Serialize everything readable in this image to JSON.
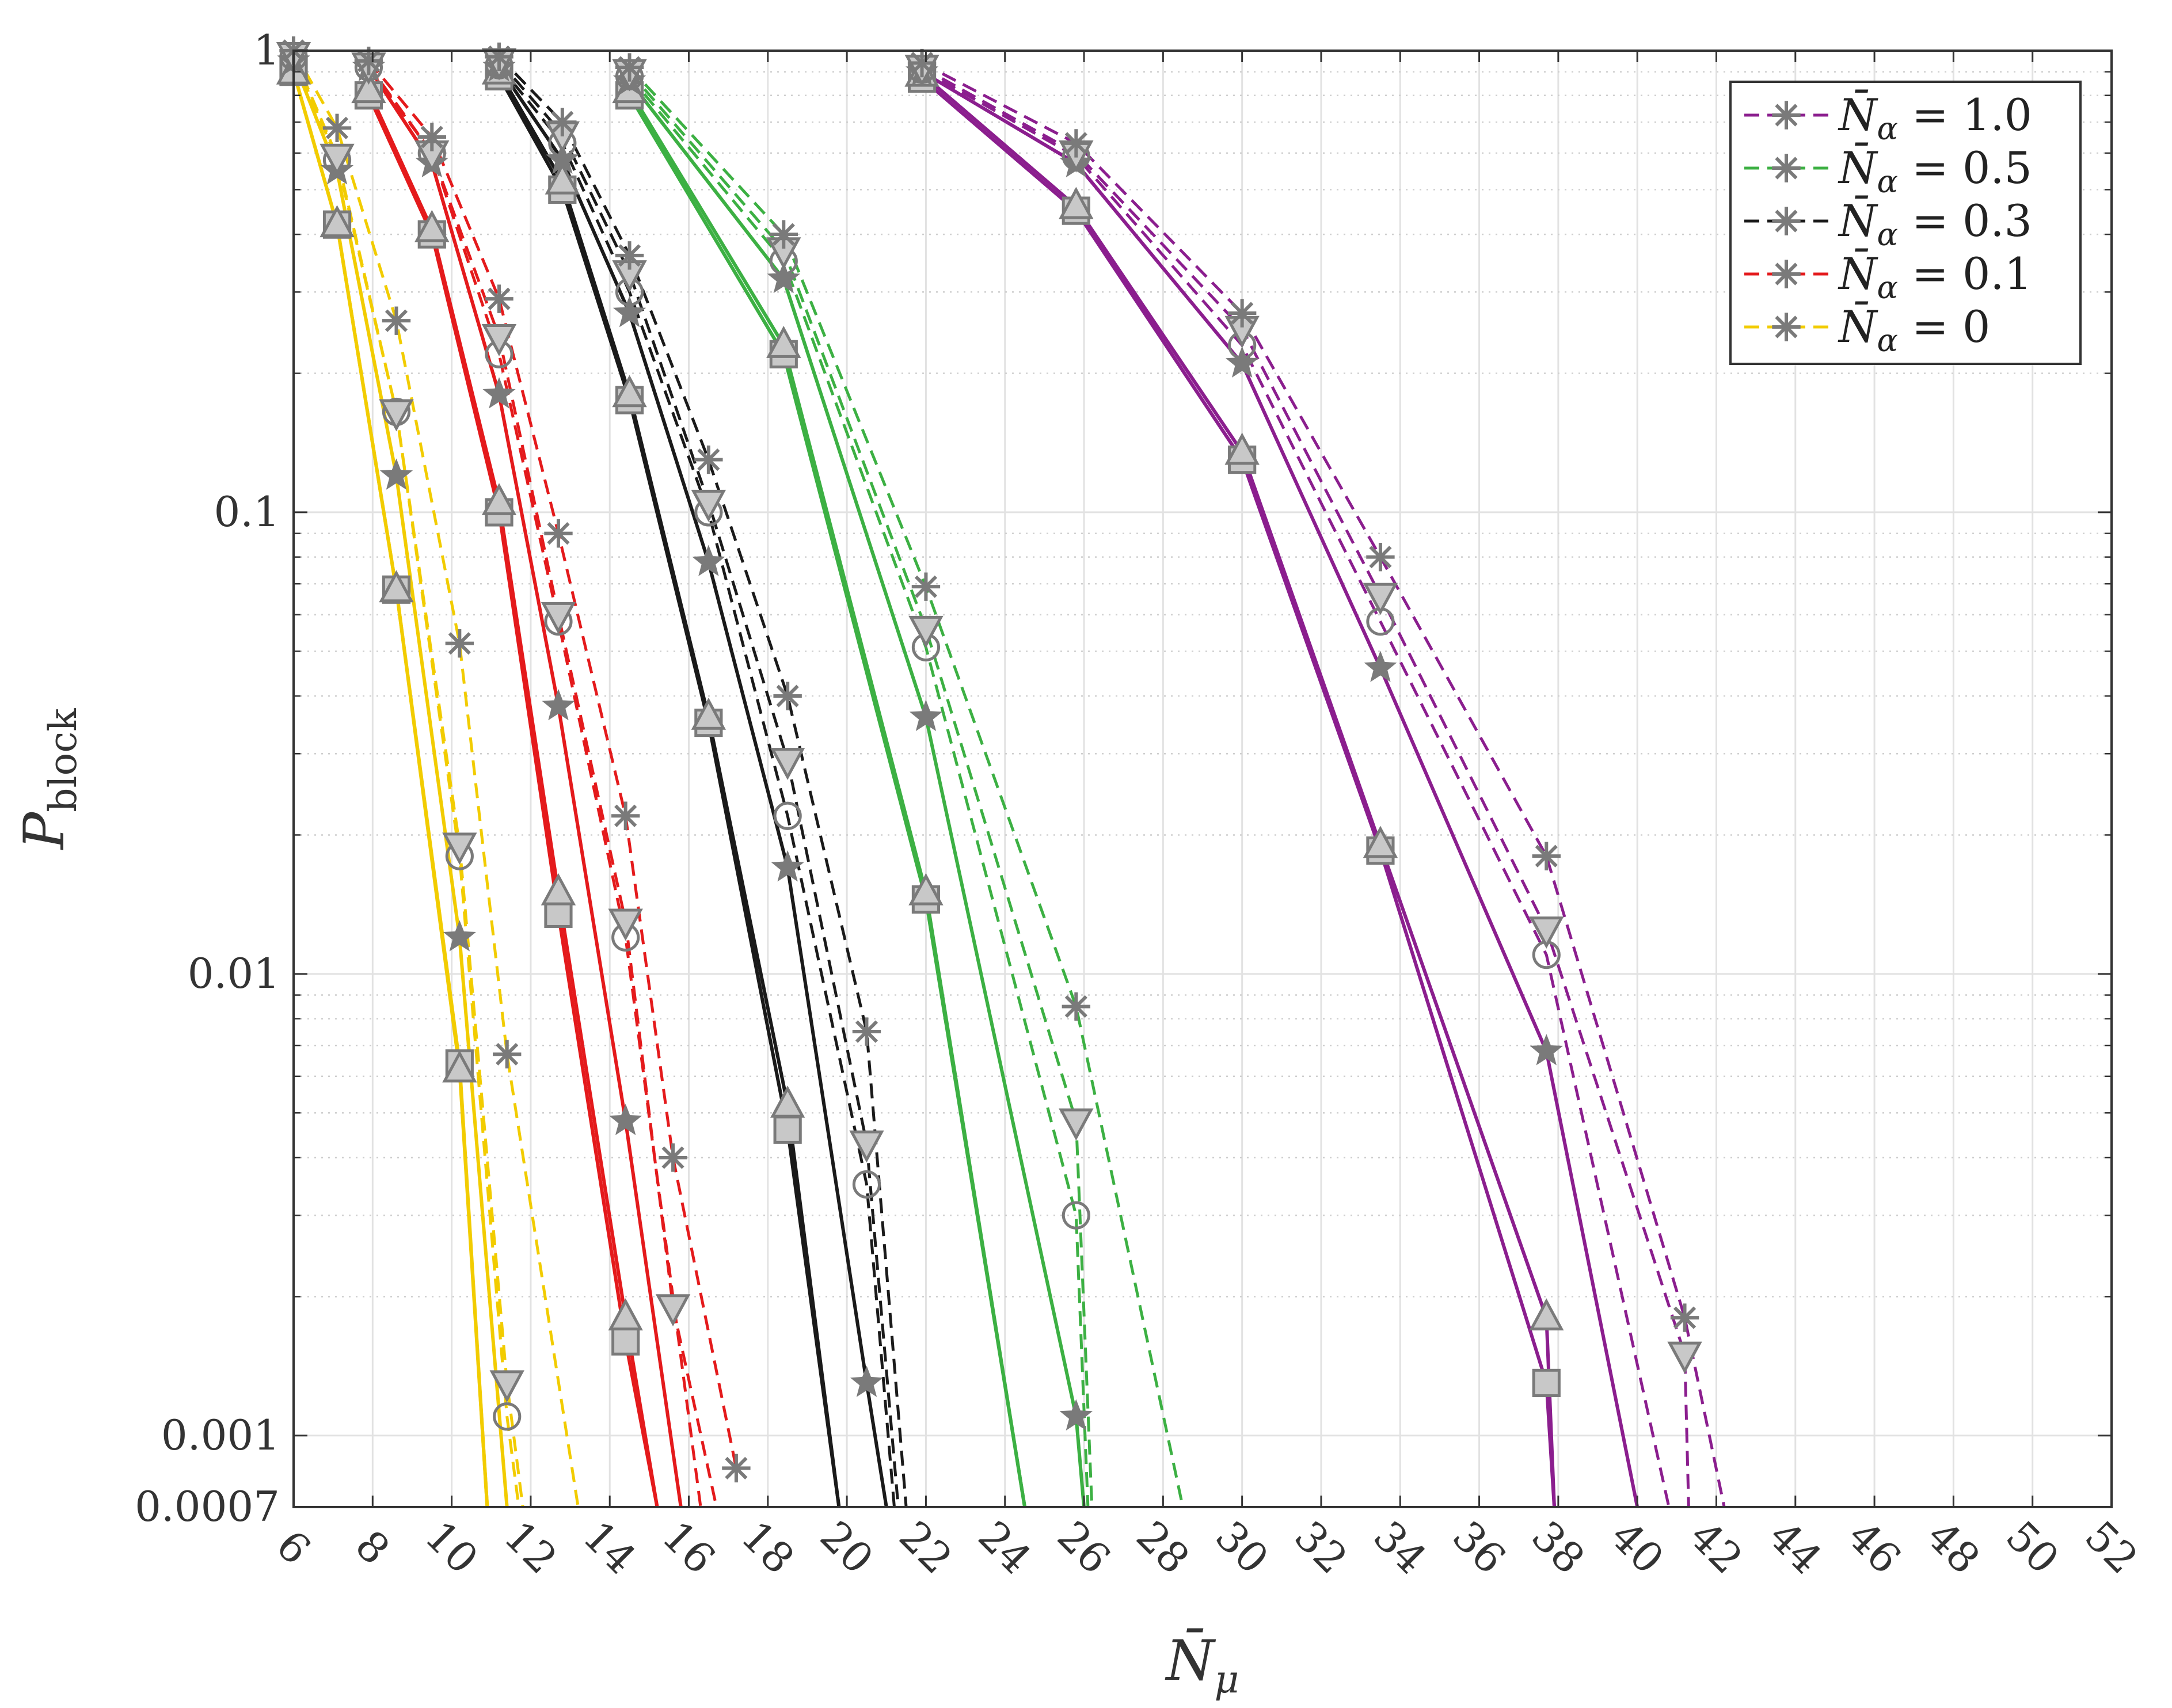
{
  "chart_data": {
    "type": "line",
    "xlabel": "N̄",
    "xlabel_sub": "μ",
    "ylabel": "P",
    "ylabel_sub": "block",
    "xlim": [
      6,
      52
    ],
    "ylim": [
      0.0007,
      1
    ],
    "yscale": "log",
    "grid": true,
    "legend_position": "top-right",
    "x_ticks": [
      6,
      8,
      10,
      12,
      14,
      16,
      18,
      20,
      22,
      24,
      26,
      28,
      30,
      32,
      34,
      36,
      38,
      40,
      42,
      44,
      46,
      48,
      50,
      52
    ],
    "x_tick_labels": [
      "6",
      "8",
      "10",
      "12",
      "14",
      "16",
      "18",
      "20",
      "22",
      "24",
      "26",
      "28",
      "30",
      "32",
      "34",
      "36",
      "38",
      "40",
      "42",
      "44",
      "46",
      "48",
      "50",
      "52"
    ],
    "y_ticks": [
      1,
      0.1,
      0.01,
      0.001,
      0.0007
    ],
    "y_tick_labels": [
      "1",
      "0.1",
      "0.01",
      "0.001",
      "0.0007"
    ],
    "legend": [
      {
        "prefix": "N̄",
        "sub": "α",
        "text": " = 1.0",
        "color": "#8B1E8E"
      },
      {
        "prefix": "N̄",
        "sub": "α",
        "text": " = 0.5",
        "color": "#3CB043"
      },
      {
        "prefix": "N̄",
        "sub": "α",
        "text": " = 0.3",
        "color": "#1A1A1A"
      },
      {
        "prefix": "N̄",
        "sub": "α",
        "text": " = 0.1",
        "color": "#E41A1C"
      },
      {
        "prefix": "N̄",
        "sub": "α",
        "text": " = 0",
        "color": "#F2CC00"
      }
    ],
    "groups": [
      {
        "alpha": "0",
        "color": "#F2CC00",
        "series": [
          {
            "marker": "square",
            "dash": false,
            "x": [
              6,
              7.1,
              8.6,
              10.2,
              10.9
            ],
            "y": [
              0.9,
              0.42,
              0.068,
              0.0064,
              0.0007
            ]
          },
          {
            "marker": "triangle-up",
            "dash": false,
            "x": [
              6,
              7.1,
              8.6,
              10.2,
              10.9
            ],
            "y": [
              0.9,
              0.42,
              0.068,
              0.0062,
              0.0007
            ]
          },
          {
            "marker": "star",
            "dash": false,
            "x": [
              6,
              7.1,
              8.6,
              10.2,
              11.4
            ],
            "y": [
              0.95,
              0.55,
              0.12,
              0.012,
              0.0007
            ]
          },
          {
            "marker": "circle",
            "dash": true,
            "x": [
              6,
              7.1,
              8.6,
              10.2,
              11.4,
              11.7
            ],
            "y": [
              0.97,
              0.58,
              0.165,
              0.018,
              0.0011,
              0.0007
            ]
          },
          {
            "marker": "triangle-down",
            "dash": true,
            "x": [
              6,
              7.1,
              8.6,
              10.2,
              11.4,
              11.8
            ],
            "y": [
              0.98,
              0.59,
              0.165,
              0.019,
              0.0013,
              0.0007
            ]
          },
          {
            "marker": "asterisk",
            "dash": true,
            "x": [
              6,
              7.1,
              8.6,
              10.2,
              11.4,
              13.2
            ],
            "y": [
              1.0,
              0.68,
              0.26,
              0.052,
              0.0067,
              0.0007
            ]
          }
        ]
      },
      {
        "alpha": "0.1",
        "color": "#E41A1C",
        "series": [
          {
            "marker": "square",
            "dash": false,
            "x": [
              7.9,
              9.5,
              11.2,
              12.7,
              14.4,
              15.2
            ],
            "y": [
              0.8,
              0.4,
              0.1,
              0.0135,
              0.0016,
              0.0007
            ]
          },
          {
            "marker": "triangle-up",
            "dash": false,
            "x": [
              7.9,
              9.5,
              11.2,
              12.7,
              14.4,
              15.2
            ],
            "y": [
              0.82,
              0.41,
              0.105,
              0.015,
              0.0018,
              0.0007
            ]
          },
          {
            "marker": "star",
            "dash": false,
            "x": [
              7.9,
              9.5,
              11.2,
              12.7,
              14.4,
              15.8
            ],
            "y": [
              0.92,
              0.57,
              0.18,
              0.038,
              0.0048,
              0.0007
            ]
          },
          {
            "marker": "circle",
            "dash": true,
            "x": [
              7.9,
              9.5,
              11.2,
              12.7,
              14.4,
              16.3
            ],
            "y": [
              0.92,
              0.6,
              0.22,
              0.058,
              0.012,
              0.0007
            ]
          },
          {
            "marker": "triangle-down",
            "dash": true,
            "x": [
              7.9,
              9.5,
              11.2,
              12.7,
              14.4,
              15.6,
              16.7
            ],
            "y": [
              0.93,
              0.6,
              0.24,
              0.06,
              0.013,
              0.0019,
              0.0007
            ]
          },
          {
            "marker": "asterisk",
            "dash": true,
            "x": [
              7.9,
              9.5,
              11.2,
              12.7,
              14.4,
              15.6,
              17.2
            ],
            "y": [
              0.95,
              0.65,
              0.29,
              0.09,
              0.022,
              0.004,
              0.00085
            ]
          }
        ]
      },
      {
        "alpha": "0.3",
        "color": "#1A1A1A",
        "series": [
          {
            "marker": "square",
            "dash": false,
            "x": [
              11.2,
              12.8,
              14.5,
              16.5,
              18.5,
              19.8
            ],
            "y": [
              0.88,
              0.5,
              0.175,
              0.035,
              0.0046,
              0.0007
            ]
          },
          {
            "marker": "triangle-up",
            "dash": false,
            "x": [
              11.2,
              12.8,
              14.5,
              16.5,
              18.5,
              19.8
            ],
            "y": [
              0.9,
              0.52,
              0.18,
              0.036,
              0.0052,
              0.0007
            ]
          },
          {
            "marker": "star",
            "dash": false,
            "x": [
              11.2,
              12.8,
              14.5,
              16.5,
              18.5,
              20.5,
              21.0
            ],
            "y": [
              0.92,
              0.58,
              0.27,
              0.078,
              0.017,
              0.0013,
              0.0007
            ]
          },
          {
            "marker": "circle",
            "dash": true,
            "x": [
              11.2,
              12.8,
              14.5,
              16.5,
              18.5,
              20.5,
              21.2
            ],
            "y": [
              0.93,
              0.63,
              0.3,
              0.1,
              0.022,
              0.0035,
              0.0007
            ]
          },
          {
            "marker": "triangle-down",
            "dash": true,
            "x": [
              11.2,
              12.8,
              14.5,
              16.5,
              18.5,
              20.5,
              21.3
            ],
            "y": [
              0.95,
              0.66,
              0.33,
              0.105,
              0.029,
              0.0043,
              0.0007
            ]
          },
          {
            "marker": "asterisk",
            "dash": true,
            "x": [
              11.2,
              12.8,
              14.5,
              16.5,
              18.5,
              20.5,
              21.5
            ],
            "y": [
              0.97,
              0.7,
              0.36,
              0.13,
              0.04,
              0.0075,
              0.0007
            ]
          }
        ]
      },
      {
        "alpha": "0.5",
        "color": "#3CB043",
        "series": [
          {
            "marker": "square",
            "dash": false,
            "x": [
              14.5,
              18.4,
              22.0,
              24.5
            ],
            "y": [
              0.8,
              0.22,
              0.0145,
              0.0007
            ]
          },
          {
            "marker": "triangle-up",
            "dash": false,
            "x": [
              14.5,
              18.4,
              22.0,
              24.5
            ],
            "y": [
              0.82,
              0.23,
              0.015,
              0.0007
            ]
          },
          {
            "marker": "star",
            "dash": false,
            "x": [
              14.5,
              18.4,
              22.0,
              25.8,
              26.0
            ],
            "y": [
              0.86,
              0.32,
              0.036,
              0.0011,
              0.0007
            ]
          },
          {
            "marker": "circle",
            "dash": true,
            "x": [
              14.5,
              18.4,
              22.0,
              25.8,
              26.1
            ],
            "y": [
              0.88,
              0.35,
              0.051,
              0.003,
              0.0007
            ]
          },
          {
            "marker": "triangle-down",
            "dash": true,
            "x": [
              14.5,
              18.4,
              22.0,
              25.8,
              26.2
            ],
            "y": [
              0.9,
              0.37,
              0.056,
              0.0048,
              0.0007
            ]
          },
          {
            "marker": "asterisk",
            "dash": true,
            "x": [
              14.5,
              18.4,
              22.0,
              25.8,
              28.5
            ],
            "y": [
              0.92,
              0.4,
              0.069,
              0.0085,
              0.0007
            ]
          }
        ]
      },
      {
        "alpha": "1.0",
        "color": "#8B1E8E",
        "series": [
          {
            "marker": "square",
            "dash": false,
            "x": [
              21.9,
              25.8,
              30.0,
              33.5,
              37.7,
              37.9
            ],
            "y": [
              0.87,
              0.45,
              0.13,
              0.0185,
              0.0013,
              0.0007
            ]
          },
          {
            "marker": "triangle-up",
            "dash": false,
            "x": [
              21.9,
              25.8,
              30.0,
              33.5,
              37.7,
              37.9
            ],
            "y": [
              0.89,
              0.46,
              0.135,
              0.019,
              0.0018,
              0.0007
            ]
          },
          {
            "marker": "star",
            "dash": false,
            "x": [
              21.9,
              25.8,
              30.0,
              33.5,
              37.7,
              40.0
            ],
            "y": [
              0.9,
              0.57,
              0.21,
              0.046,
              0.0068,
              0.0007
            ]
          },
          {
            "marker": "circle",
            "dash": true,
            "x": [
              21.9,
              25.8,
              30.0,
              33.5,
              37.7,
              40.8
            ],
            "y": [
              0.91,
              0.59,
              0.23,
              0.058,
              0.011,
              0.0007
            ]
          },
          {
            "marker": "triangle-down",
            "dash": true,
            "x": [
              21.9,
              25.8,
              30.0,
              33.5,
              37.7,
              41.2,
              41.3
            ],
            "y": [
              0.92,
              0.6,
              0.25,
              0.066,
              0.0125,
              0.0015,
              0.0007
            ]
          },
          {
            "marker": "asterisk",
            "dash": true,
            "x": [
              21.9,
              25.8,
              30.0,
              33.5,
              37.7,
              41.2,
              42.2
            ],
            "y": [
              0.94,
              0.63,
              0.27,
              0.08,
              0.018,
              0.0018,
              0.0007
            ]
          }
        ]
      }
    ]
  }
}
